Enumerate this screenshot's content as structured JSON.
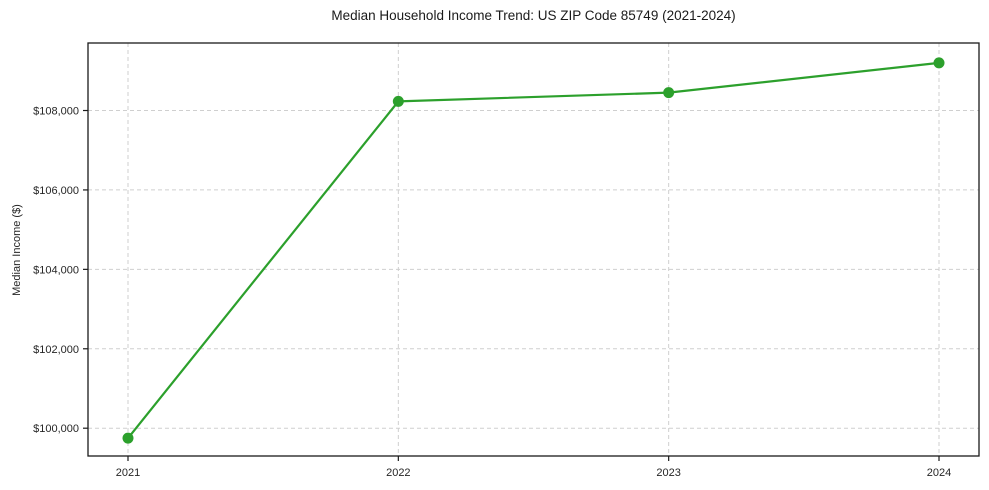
{
  "page": {
    "title": "Median Household Income Trend: US ZIP Code 85749 (2021-2024)"
  },
  "chart_data": {
    "type": "line",
    "title": "Median Household Income Trend: US ZIP Code 85749 (2021-2024)",
    "xlabel": "",
    "ylabel": "Median Income ($)",
    "x": [
      "2021",
      "2022",
      "2023",
      "2024"
    ],
    "series": [
      {
        "name": "Median Household Income",
        "values": [
          99750,
          108230,
          108450,
          109200
        ]
      }
    ],
    "yticks": [
      100000,
      102000,
      104000,
      106000,
      108000
    ],
    "ytick_labels": [
      "$100,000",
      "$102,000",
      "$104,000",
      "$106,000",
      "$108,000"
    ],
    "ylim": [
      99300,
      109700
    ],
    "grid": "dashed, both axes",
    "legend": "none",
    "line_color": "#2ca02c",
    "marker": "filled-circle",
    "background_color": "#ffffff",
    "grid_color": "#cfcfcf",
    "axis_color": "#1a1a1a"
  }
}
